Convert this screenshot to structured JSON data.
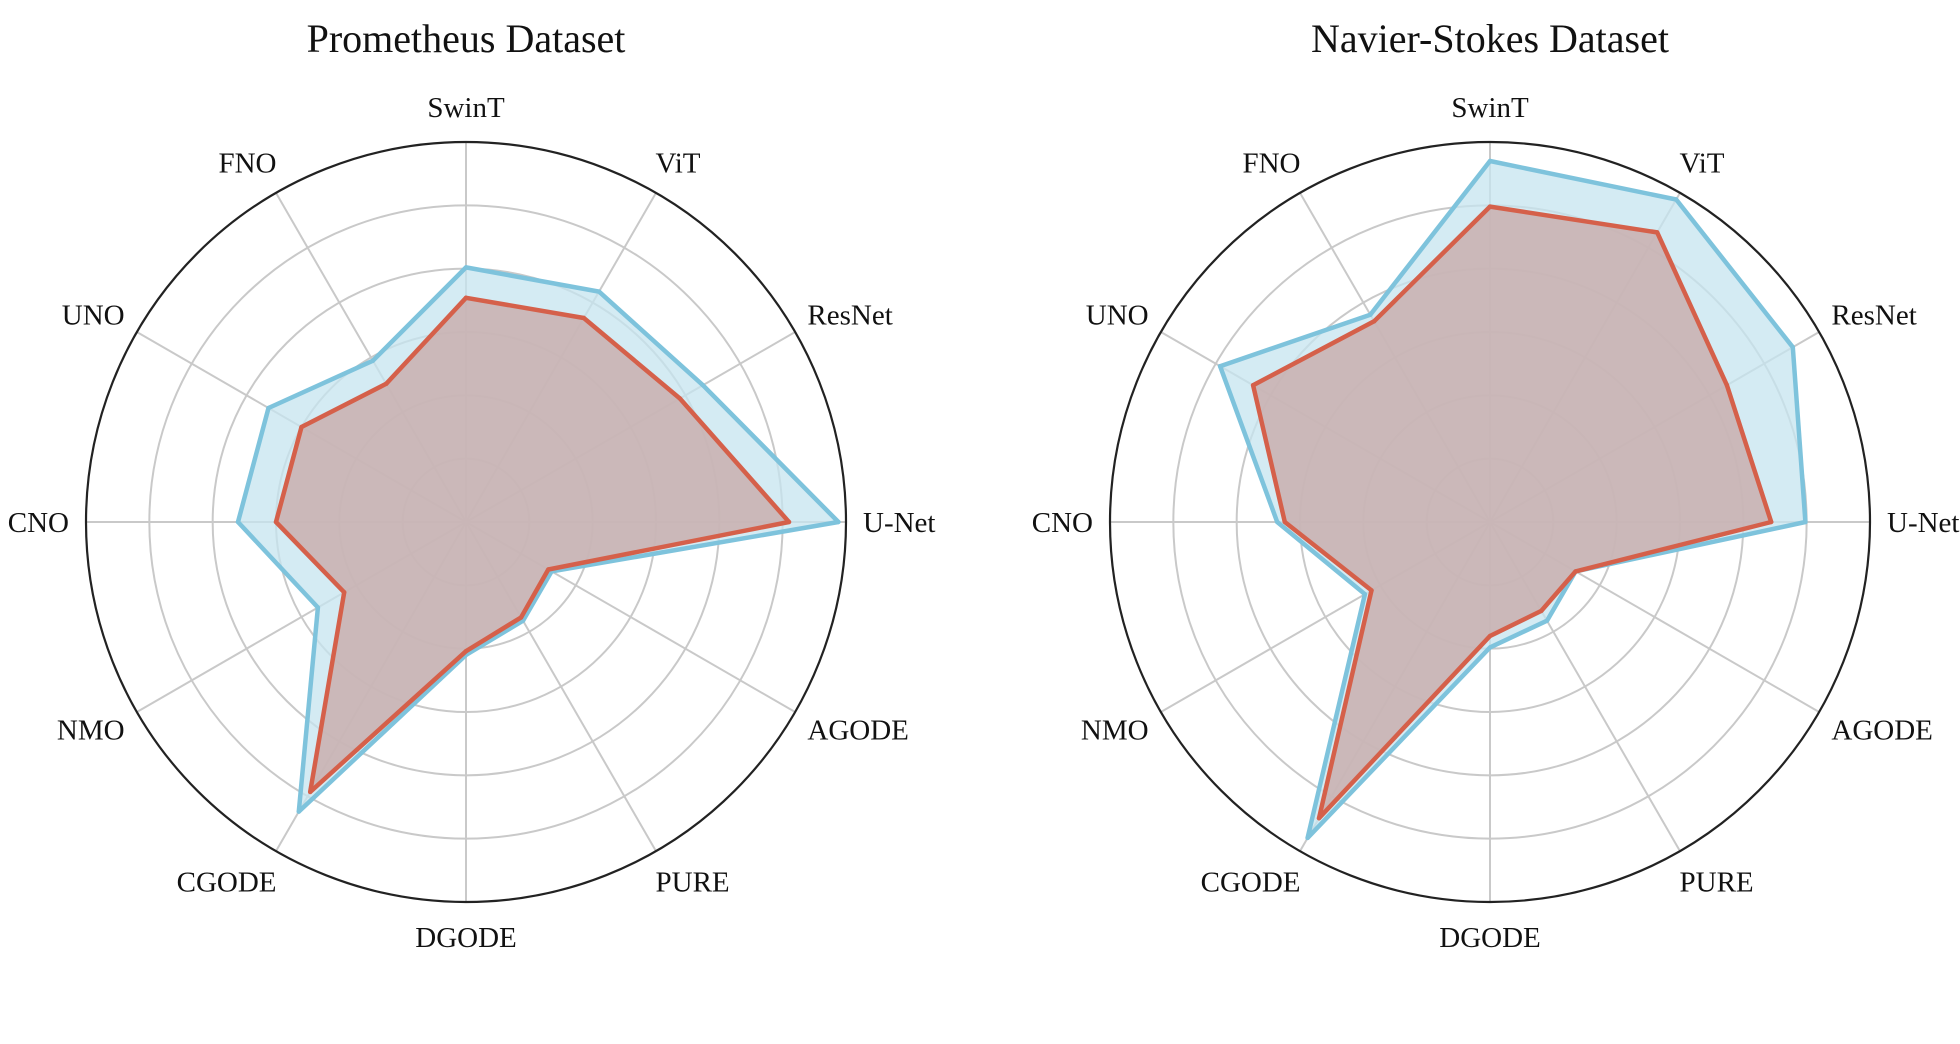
{
  "chart_data": [
    {
      "type": "radar",
      "title": "Prometheus Dataset",
      "categories": [
        "U-Net",
        "ResNet",
        "ViT",
        "SwinT",
        "FNO",
        "UNO",
        "CNO",
        "NMO",
        "CGODE",
        "DGODE",
        "PURE",
        "AGODE"
      ],
      "rlim": [
        0,
        1
      ],
      "grid": true,
      "series": [
        {
          "color": "#7ec3dc",
          "fill": "#c5e4ef",
          "values": [
            0.98,
            0.72,
            0.7,
            0.67,
            0.49,
            0.6,
            0.6,
            0.45,
            0.88,
            0.35,
            0.3,
            0.26
          ]
        },
        {
          "color": "#d5604a",
          "fill": "#c9afae",
          "values": [
            0.85,
            0.65,
            0.62,
            0.59,
            0.42,
            0.5,
            0.5,
            0.37,
            0.82,
            0.34,
            0.29,
            0.25
          ]
        }
      ]
    },
    {
      "type": "radar",
      "title": "Navier-Stokes Dataset",
      "categories": [
        "U-Net",
        "ResNet",
        "ViT",
        "SwinT",
        "FNO",
        "UNO",
        "CNO",
        "NMO",
        "CGODE",
        "DGODE",
        "PURE",
        "AGODE"
      ],
      "rlim": [
        0,
        1
      ],
      "grid": true,
      "series": [
        {
          "color": "#7ec3dc",
          "fill": "#c5e4ef",
          "values": [
            0.83,
            0.92,
            0.98,
            0.95,
            0.63,
            0.82,
            0.56,
            0.38,
            0.96,
            0.33,
            0.3,
            0.26
          ]
        },
        {
          "color": "#d5604a",
          "fill": "#c9afae",
          "values": [
            0.74,
            0.72,
            0.88,
            0.83,
            0.61,
            0.72,
            0.54,
            0.36,
            0.9,
            0.3,
            0.27,
            0.26
          ]
        }
      ]
    }
  ]
}
